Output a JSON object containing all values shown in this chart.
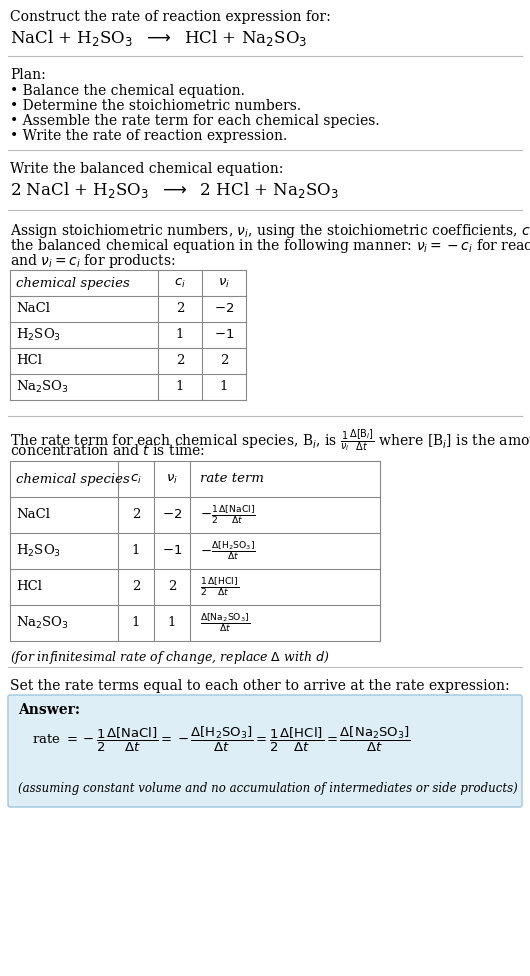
{
  "bg_color": "#ffffff",
  "text_color": "#000000",
  "answer_bg": "#ddeef6",
  "answer_border": "#a0c8dc",
  "title_line1": "Construct the rate of reaction expression for:",
  "plan_header": "Plan:",
  "plan_items": [
    "• Balance the chemical equation.",
    "• Determine the stoichiometric numbers.",
    "• Assemble the rate term for each chemical species.",
    "• Write the rate of reaction expression."
  ],
  "balanced_header": "Write the balanced chemical equation:",
  "set_equal_header": "Set the rate terms equal to each other to arrive at the rate expression:",
  "answer_label": "Answer:",
  "answer_footnote": "(assuming constant volume and no accumulation of intermediates or side products)",
  "font_main": 10.0,
  "font_reaction": 12.0,
  "font_table": 9.5
}
